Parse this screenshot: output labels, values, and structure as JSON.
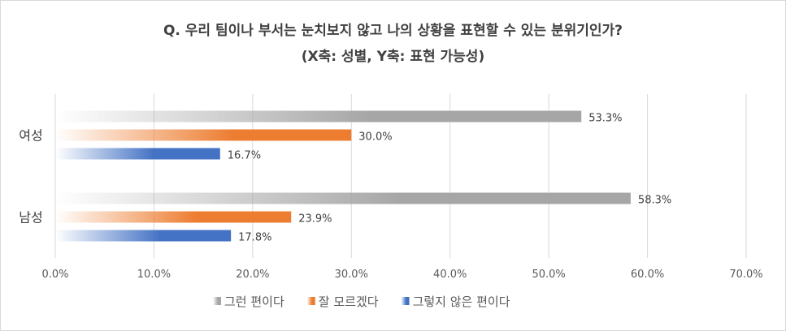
{
  "chart_data": {
    "type": "bar",
    "orientation": "horizontal",
    "title": "Q. 우리 팀이나 부서는 눈치보지 않고 나의 상황을 표현할 수 있는 분위기인가?",
    "subtitle": "(X축: 성별, Y축: 표현 가능성)",
    "categories": [
      "여성",
      "남성"
    ],
    "series": [
      {
        "name": "그런 편이다",
        "values": [
          53.3,
          58.3
        ],
        "value_labels": [
          "53.3%",
          "58.3%"
        ],
        "color": "#a6a6a6"
      },
      {
        "name": "잘 모르겠다",
        "values": [
          30.0,
          23.9
        ],
        "value_labels": [
          "30.0%",
          "23.9%"
        ],
        "color": "#ed7d31"
      },
      {
        "name": "그렇지 않은 편이다",
        "values": [
          16.7,
          17.8
        ],
        "value_labels": [
          "16.7%",
          "17.8%"
        ],
        "color": "#4472c4"
      }
    ],
    "xlim": [
      0,
      70
    ],
    "xticks": [
      "0.0%",
      "10.0%",
      "20.0%",
      "30.0%",
      "40.0%",
      "50.0%",
      "60.0%",
      "70.0%"
    ],
    "grid": true,
    "legend_position": "bottom"
  }
}
